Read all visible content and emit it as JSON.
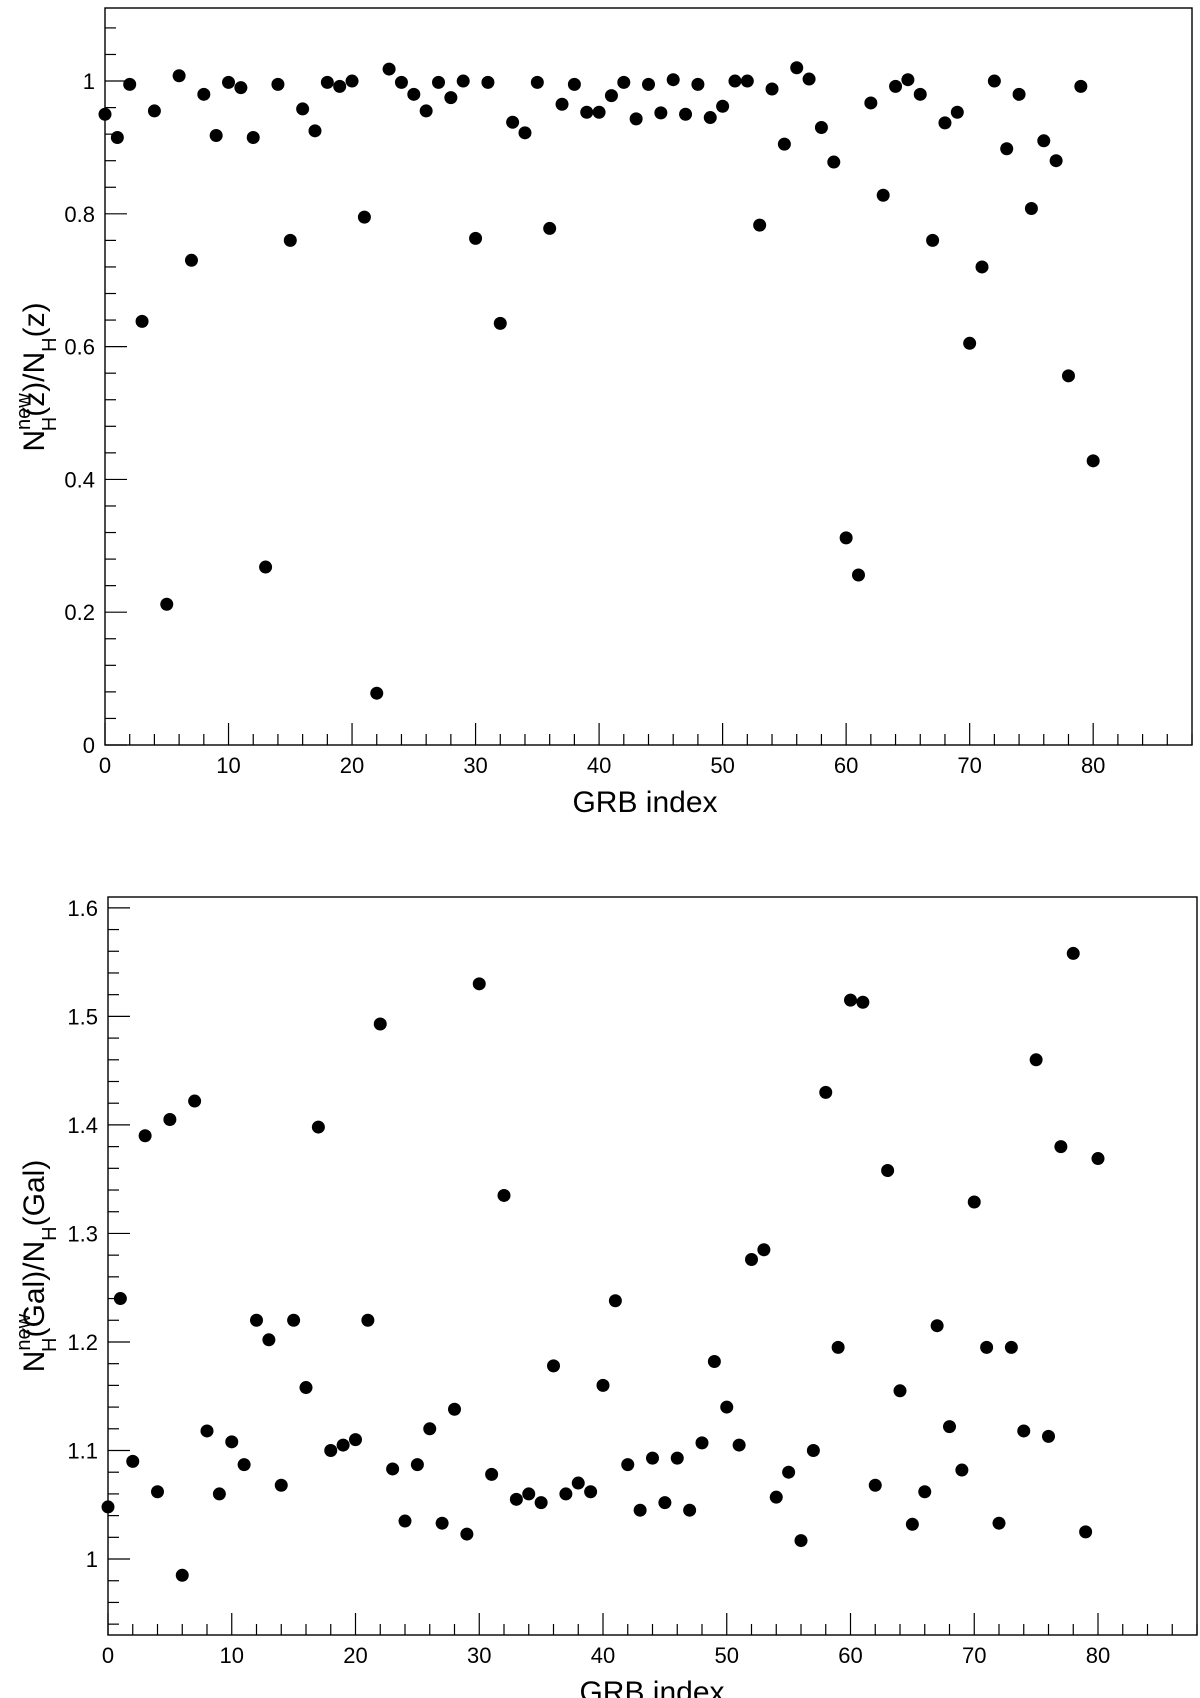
{
  "chart_data": [
    {
      "type": "scatter",
      "title": "",
      "xlabel": "GRB index",
      "ylabel": {
        "base": "N",
        "sup": "new",
        "sub": "H",
        "mid": "(z)/N",
        "sub2": "H",
        "tail": "(z)"
      },
      "xlim": [
        0,
        88
      ],
      "ylim": [
        0,
        1.11
      ],
      "xticks": [
        0,
        10,
        20,
        30,
        40,
        50,
        60,
        70,
        80
      ],
      "xtick_labels": [
        "0",
        "10",
        "20",
        "30",
        "40",
        "50",
        "60",
        "70",
        "80"
      ],
      "yticks": [
        0,
        0.2,
        0.4,
        0.6,
        0.8,
        1
      ],
      "ytick_labels": [
        "0",
        "0.2",
        "0.4",
        "0.6",
        "0.8",
        "1"
      ],
      "grid": false,
      "series": [
        {
          "color": "#000000",
          "x": [
            0,
            1,
            2,
            3,
            4,
            5,
            6,
            7,
            8,
            9,
            10,
            11,
            12,
            13,
            14,
            15,
            16,
            17,
            18,
            19,
            20,
            21,
            22,
            23,
            24,
            25,
            26,
            27,
            28,
            29,
            30,
            31,
            32,
            33,
            34,
            35,
            36,
            37,
            38,
            39,
            40,
            41,
            42,
            43,
            44,
            45,
            46,
            47,
            48,
            49,
            50,
            51,
            52,
            53,
            54,
            55,
            56,
            57,
            58,
            59,
            60,
            61,
            62,
            63,
            64,
            65,
            66,
            67,
            68,
            69,
            70,
            71,
            72,
            73,
            74,
            75,
            76,
            77,
            78,
            79,
            80
          ],
          "y": [
            0.95,
            0.915,
            0.995,
            0.638,
            0.955,
            0.212,
            1.008,
            0.73,
            0.98,
            0.918,
            0.998,
            0.99,
            0.915,
            0.268,
            0.995,
            0.76,
            0.958,
            0.925,
            0.998,
            0.992,
            1.0,
            0.795,
            0.078,
            1.018,
            0.998,
            0.98,
            0.955,
            0.998,
            0.975,
            1.0,
            0.763,
            0.998,
            0.635,
            0.938,
            0.922,
            0.998,
            0.778,
            0.965,
            0.995,
            0.953,
            0.953,
            0.978,
            0.998,
            0.943,
            0.995,
            0.952,
            1.002,
            0.95,
            0.995,
            0.945,
            0.962,
            1.0,
            1.0,
            0.783,
            0.988,
            0.905,
            1.02,
            1.003,
            0.93,
            0.878,
            0.312,
            0.256,
            0.967,
            0.828,
            0.992,
            1.002,
            0.98,
            0.76,
            0.937,
            0.953,
            0.605,
            0.72,
            1.0,
            0.898,
            0.98,
            0.808,
            0.91,
            0.88,
            0.556,
            0.992,
            0.428
          ]
        }
      ]
    },
    {
      "type": "scatter",
      "title": "",
      "xlabel": "GRB index",
      "ylabel": {
        "base": "N",
        "sup": "new",
        "sub": "H",
        "mid": "(Gal)/N",
        "sub2": "H",
        "tail": "(Gal)"
      },
      "xlim": [
        0,
        88
      ],
      "ylim": [
        0.93,
        1.61
      ],
      "xticks": [
        0,
        10,
        20,
        30,
        40,
        50,
        60,
        70,
        80
      ],
      "xtick_labels": [
        "0",
        "10",
        "20",
        "30",
        "40",
        "50",
        "60",
        "70",
        "80"
      ],
      "yticks": [
        1,
        1.1,
        1.2,
        1.3,
        1.4,
        1.5,
        1.6
      ],
      "ytick_labels": [
        "1",
        "1.1",
        "1.2",
        "1.3",
        "1.4",
        "1.5",
        "1.6"
      ],
      "grid": false,
      "series": [
        {
          "color": "#000000",
          "x": [
            0,
            1,
            2,
            3,
            4,
            5,
            6,
            7,
            8,
            9,
            10,
            11,
            12,
            13,
            14,
            15,
            16,
            17,
            18,
            19,
            20,
            21,
            22,
            23,
            24,
            25,
            26,
            27,
            28,
            29,
            30,
            31,
            32,
            33,
            34,
            35,
            36,
            37,
            38,
            39,
            40,
            41,
            42,
            43,
            44,
            45,
            46,
            47,
            48,
            49,
            50,
            51,
            52,
            53,
            54,
            55,
            56,
            57,
            58,
            59,
            60,
            61,
            62,
            63,
            64,
            65,
            66,
            67,
            68,
            69,
            70,
            71,
            72,
            73,
            74,
            75,
            76,
            77,
            78,
            79,
            80
          ],
          "y": [
            1.048,
            1.24,
            1.09,
            1.39,
            1.062,
            1.405,
            0.985,
            1.422,
            1.118,
            1.06,
            1.108,
            1.087,
            1.22,
            1.202,
            1.068,
            1.22,
            1.158,
            1.398,
            1.1,
            1.105,
            1.11,
            1.22,
            1.493,
            1.083,
            1.035,
            1.087,
            1.12,
            1.033,
            1.138,
            1.023,
            1.53,
            1.078,
            1.335,
            1.055,
            1.06,
            1.052,
            1.178,
            1.06,
            1.07,
            1.062,
            1.16,
            1.238,
            1.087,
            1.045,
            1.093,
            1.052,
            1.093,
            1.045,
            1.107,
            1.182,
            1.14,
            1.105,
            1.276,
            1.285,
            1.057,
            1.08,
            1.017,
            1.1,
            1.43,
            1.195,
            1.515,
            1.513,
            1.068,
            1.358,
            1.155,
            1.032,
            1.062,
            1.215,
            1.122,
            1.082,
            1.329,
            1.195,
            1.033,
            1.195,
            1.118,
            1.46,
            1.113,
            1.38,
            1.558,
            1.025,
            1.369
          ]
        }
      ]
    }
  ]
}
